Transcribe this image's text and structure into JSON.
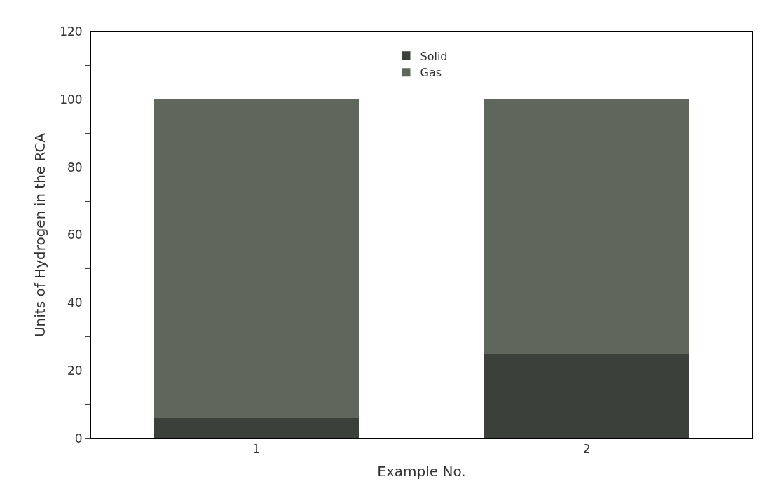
{
  "chart_data": {
    "type": "bar",
    "stacked": true,
    "xlabel": "Example No.",
    "ylabel": "Units of Hydrogen in the RCA",
    "categories": [
      "1",
      "2"
    ],
    "series": [
      {
        "name": "Solid",
        "color": "#3b403a",
        "values": [
          6,
          25
        ]
      },
      {
        "name": "Gas",
        "color": "#5f675c",
        "values": [
          94,
          75
        ]
      }
    ],
    "ylim": [
      0,
      120
    ],
    "yticks": [
      0,
      {
        "value": 10,
        "label": null
      },
      20,
      {
        "value": 30,
        "label": null
      },
      40,
      {
        "value": 50,
        "label": null
      },
      60,
      {
        "value": 70,
        "label": null
      },
      80,
      {
        "value": 90,
        "label": null
      },
      100,
      {
        "value": 110,
        "label": null
      },
      120
    ],
    "legend": "top"
  }
}
